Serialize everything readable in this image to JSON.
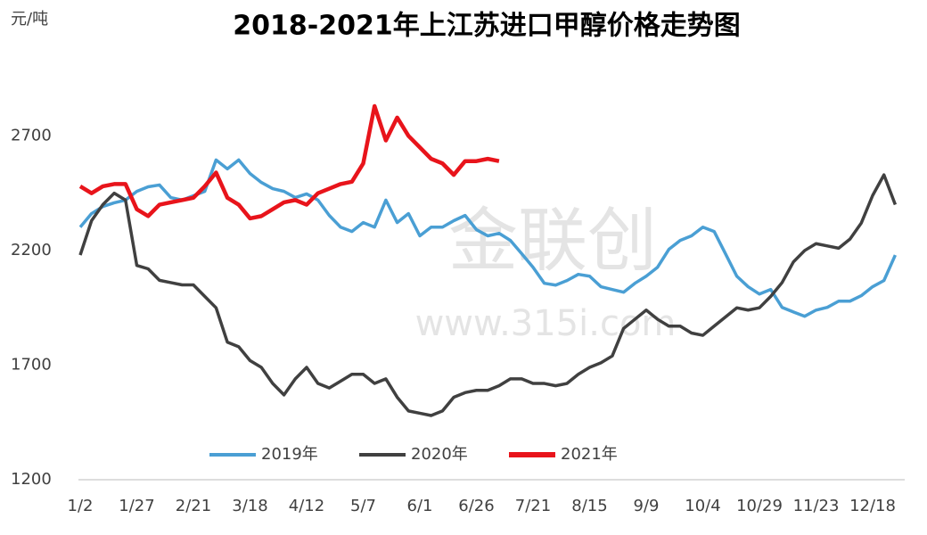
{
  "chart_data": {
    "type": "line",
    "title": "2018-2021年上江苏进口甲醇价格走势图",
    "y_unit": "元/吨",
    "watermark": [
      "金联创",
      "www.315i.com"
    ],
    "categories": [
      "1/2",
      null,
      null,
      null,
      null,
      "1/27",
      null,
      null,
      null,
      null,
      "2/21",
      null,
      null,
      null,
      null,
      "3/18",
      null,
      null,
      null,
      null,
      "4/12",
      null,
      null,
      null,
      null,
      "5/7",
      null,
      null,
      null,
      null,
      "6/1",
      null,
      null,
      null,
      null,
      "6/26",
      null,
      null,
      null,
      null,
      "7/21",
      null,
      null,
      null,
      null,
      "8/15",
      null,
      null,
      null,
      null,
      "9/9",
      null,
      null,
      null,
      null,
      "10/4",
      null,
      null,
      null,
      null,
      "10/29",
      null,
      null,
      null,
      null,
      "11/23",
      null,
      null,
      null,
      null,
      "12/18",
      null,
      null
    ],
    "series": [
      {
        "name": "2019年",
        "color": "#4a9fd4",
        "values": [
          2302,
          2361,
          2392,
          2408,
          2420,
          2458,
          2478,
          2486,
          2431,
          2420,
          2439,
          2458,
          2595,
          2556,
          2595,
          2536,
          2497,
          2470,
          2458,
          2431,
          2447,
          2420,
          2353,
          2302,
          2283,
          2322,
          2302,
          2420,
          2322,
          2361,
          2264,
          2302,
          2302,
          2330,
          2353,
          2291,
          2264,
          2275,
          2244,
          2186,
          2127,
          2057,
          2049,
          2069,
          2096,
          2088,
          2042,
          2030,
          2018,
          2057,
          2088,
          2127,
          2205,
          2244,
          2264,
          2302,
          2283,
          2186,
          2088,
          2042,
          2010,
          2030,
          1952,
          1932,
          1913,
          1940,
          1952,
          1979,
          1979,
          2003,
          2042,
          2069,
          2180
        ]
      },
      {
        "name": "2020年",
        "color": "#404040",
        "values": [
          2180,
          2330,
          2400,
          2450,
          2420,
          2135,
          2120,
          2070,
          2060,
          2050,
          2050,
          2000,
          1950,
          1800,
          1780,
          1720,
          1690,
          1620,
          1570,
          1640,
          1690,
          1620,
          1600,
          1630,
          1660,
          1660,
          1620,
          1640,
          1560,
          1500,
          1490,
          1480,
          1500,
          1560,
          1580,
          1590,
          1590,
          1610,
          1640,
          1640,
          1620,
          1620,
          1610,
          1620,
          1660,
          1690,
          1710,
          1740,
          1860,
          1900,
          1940,
          1900,
          1870,
          1870,
          1840,
          1830,
          1870,
          1910,
          1950,
          1940,
          1950,
          2000,
          2060,
          2150,
          2200,
          2230,
          2220,
          2210,
          2250,
          2320,
          2440,
          2530,
          2400
        ]
      },
      {
        "name": "2021年",
        "color": "#e8141b",
        "values": [
          2480,
          2450,
          2480,
          2490,
          2490,
          2380,
          2350,
          2400,
          2410,
          2420,
          2430,
          2480,
          2540,
          2430,
          2400,
          2340,
          2350,
          2380,
          2410,
          2420,
          2400,
          2450,
          2470,
          2490,
          2500,
          2580,
          2830,
          2680,
          2780,
          2700,
          2650,
          2600,
          2580,
          2530,
          2590,
          2590,
          2600,
          2590,
          null,
          null,
          null,
          null,
          null,
          null,
          null,
          null,
          null,
          null,
          null,
          null,
          null,
          null,
          null,
          null,
          null,
          null,
          null,
          null,
          null,
          null,
          null,
          null,
          null,
          null,
          null,
          null,
          null,
          null,
          null,
          null,
          null,
          null,
          null
        ]
      }
    ],
    "ylim": [
      1200,
      2900
    ],
    "yticks": [
      1200,
      1700,
      2200,
      2700
    ]
  }
}
